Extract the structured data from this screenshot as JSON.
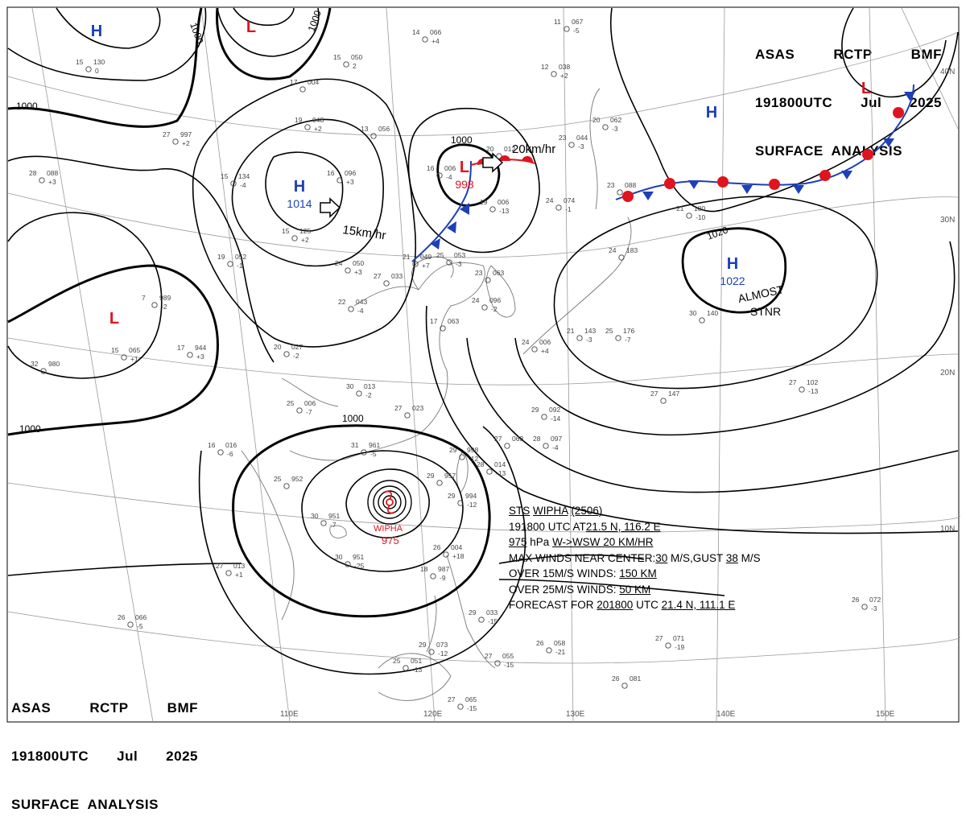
{
  "header_top": {
    "line1": [
      "ASAS",
      "RCTP",
      "BMF"
    ],
    "line2": [
      "191800UTC",
      "Jul",
      "2025"
    ],
    "line3": "SURFACE  ANALYSIS"
  },
  "header_bottom": {
    "line1": [
      "ASAS",
      "RCTP",
      "BMF"
    ],
    "line2": [
      "191800UTC",
      "Jul",
      "2025"
    ],
    "line3": "SURFACE  ANALYSIS"
  },
  "lon_labels": [
    "110E",
    "120E",
    "130E",
    "140E",
    "150E"
  ],
  "lat_labels": [
    "40N",
    "30N",
    "20N",
    "10N"
  ],
  "pressure_centers": [
    {
      "type": "H",
      "value": "",
      "color": "#1d3fb8"
    },
    {
      "type": "L",
      "value": "",
      "color": "#e0141e"
    },
    {
      "type": "H",
      "value": "1014",
      "color": "#1d3fb8"
    },
    {
      "type": "L",
      "value": "998",
      "color": "#e0141e"
    },
    {
      "type": "H",
      "value": "",
      "color": "#1d3fb8"
    },
    {
      "type": "L",
      "value": "",
      "color": "#e0141e"
    },
    {
      "type": "H",
      "value": "1022",
      "color": "#1d3fb8"
    },
    {
      "type": "L",
      "value": "",
      "color": "#e0141e"
    }
  ],
  "isobar_labels": [
    "1000",
    "1000",
    "1000",
    "1000",
    "1000",
    "1000",
    "1020"
  ],
  "motion_labels": [
    "15km/hr",
    "20km/hr"
  ],
  "annotations": [
    "ALMOST",
    "STNR"
  ],
  "typhoon": {
    "name": "WIPHA",
    "pressure": "975"
  },
  "storm_info": {
    "l1": [
      "STS",
      "WIPHA",
      "(2506)"
    ],
    "l2a": "191800 UTC  AT",
    "l2b": "21.5 N, ",
    "l2c": "116.2 E",
    "l3a": "975",
    "l3b": " hPa  ",
    "l3c": "W->WSW",
    "l3d": "  20 KM/HR",
    "l4a": "MAX WINDS NEAR CENTER:",
    "l4b": "30",
    "l4c": " M/S,GUST ",
    "l4d": "38",
    "l4e": " M/S",
    "l5a": "OVER 15M/S WINDS: ",
    "l5b": "150 KM",
    "l6a": "OVER 25M/S WINDS: ",
    "l6b": "50 KM",
    "l7a": "FORECAST FOR ",
    "l7b": "201800",
    "l7c": " UTC ",
    "l7d": "21.4 N, ",
    "l7e": "111.1 E"
  },
  "station_plots": [
    [
      "15",
      "130",
      "0"
    ],
    [
      "17",
      "004",
      ""
    ],
    [
      "15",
      "050",
      "2"
    ],
    [
      "14",
      "066",
      "+4"
    ],
    [
      "11",
      "067",
      "-5"
    ],
    [
      "12",
      "038",
      "+2"
    ],
    [
      "19",
      "048",
      "+2"
    ],
    [
      "13",
      "056",
      ""
    ],
    [
      "27",
      "997",
      "+2"
    ],
    [
      "15",
      "134",
      "-4"
    ],
    [
      "16",
      "096",
      "+3"
    ],
    [
      "16",
      "006",
      "-4"
    ],
    [
      "20",
      "012",
      ""
    ],
    [
      "23",
      "044",
      "-3"
    ],
    [
      "20",
      "062",
      "-3"
    ],
    [
      "28",
      "088",
      "+3"
    ],
    [
      "15",
      "125",
      "+2"
    ],
    [
      "24",
      "074",
      "-1"
    ],
    [
      "23",
      "088",
      ""
    ],
    [
      "21",
      "180",
      "-10"
    ],
    [
      "19",
      "052",
      "-1"
    ],
    [
      "24",
      "050",
      "+3"
    ],
    [
      "21",
      "049",
      "+7"
    ],
    [
      "25",
      "053",
      "-3"
    ],
    [
      "19",
      "006",
      "-13"
    ],
    [
      "27",
      "033",
      ""
    ],
    [
      "23",
      "063",
      ""
    ],
    [
      "24",
      "096",
      "-2"
    ],
    [
      "24",
      "183",
      ""
    ],
    [
      "7",
      "989",
      "-2"
    ],
    [
      "22",
      "043",
      "-4"
    ],
    [
      "17",
      "063",
      ""
    ],
    [
      "24",
      "006",
      "+4"
    ],
    [
      "21",
      "143",
      "-3"
    ],
    [
      "15",
      "065",
      "+1"
    ],
    [
      "17",
      "944",
      "+3"
    ],
    [
      "20",
      "027",
      "-2"
    ],
    [
      "25",
      "176",
      "-7"
    ],
    [
      "30",
      "140",
      ""
    ],
    [
      "32",
      "980",
      ""
    ],
    [
      "30",
      "013",
      "-2"
    ],
    [
      "27",
      "023",
      ""
    ],
    [
      "29",
      "092",
      "-14"
    ],
    [
      "27",
      "147",
      ""
    ],
    [
      "27",
      "102",
      "-13"
    ],
    [
      "25",
      "006",
      "-7"
    ],
    [
      "16",
      "016",
      "-6"
    ],
    [
      "27",
      "063",
      ""
    ],
    [
      "28",
      "097",
      "-4"
    ],
    [
      "31",
      "961",
      "-5"
    ],
    [
      "29",
      "998",
      "-12"
    ],
    [
      "28",
      "014",
      "-13"
    ],
    [
      "29",
      "957",
      ""
    ],
    [
      "29",
      "994",
      "-12"
    ],
    [
      "25",
      "952",
      ""
    ],
    [
      "30",
      "951",
      "-7"
    ],
    [
      "27",
      "013",
      "+1"
    ],
    [
      "30",
      "951",
      "-25"
    ],
    [
      "26",
      "004",
      "+18"
    ],
    [
      "18",
      "987",
      "-9"
    ],
    [
      "29",
      "033",
      "-15"
    ],
    [
      "26",
      "058",
      "-21"
    ],
    [
      "27",
      "055",
      "-15"
    ],
    [
      "29",
      "073",
      "-12"
    ],
    [
      "25",
      "051",
      "-13"
    ],
    [
      "27",
      "065",
      "-15"
    ],
    [
      "26",
      "072",
      "-3"
    ],
    [
      "27",
      "071",
      "-19"
    ],
    [
      "26",
      "081",
      ""
    ],
    [
      "26",
      "066",
      "-5"
    ]
  ]
}
